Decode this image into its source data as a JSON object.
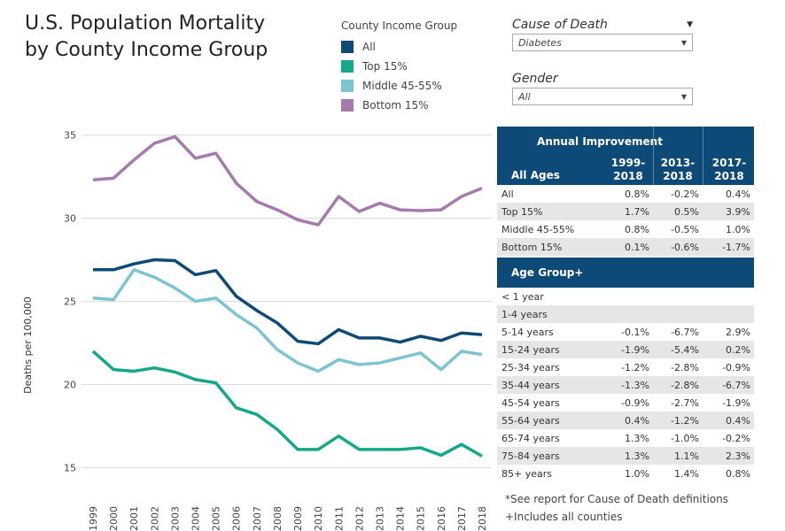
{
  "title_line1": "U.S. Population Mortality",
  "title_line2": "by County Income Group",
  "legend": {
    "title": "County Income Group",
    "items": [
      {
        "label": "All",
        "color": "#0d4a78"
      },
      {
        "label": "Top 15%",
        "color": "#14a88a"
      },
      {
        "label": "Middle 45-55%",
        "color": "#7cc4d2"
      },
      {
        "label": "Bottom 15%",
        "color": "#a57aad"
      }
    ]
  },
  "filters": {
    "cause_label": "Cause of Death",
    "cause_value": "Diabetes",
    "gender_label": "Gender",
    "gender_value": "All"
  },
  "table": {
    "header_title": "Annual Improvement",
    "all_ages_label": "All Ages",
    "col1": "1999-\n2018",
    "col2": "2013-\n2018",
    "col3": "2017-\n2018",
    "income_rows": [
      {
        "label": "All",
        "v1": "0.8%",
        "v2": "-0.2%",
        "v3": "0.4%"
      },
      {
        "label": "Top 15%",
        "v1": "1.7%",
        "v2": "0.5%",
        "v3": "3.9%"
      },
      {
        "label": "Middle 45-55%",
        "v1": "0.8%",
        "v2": "-0.5%",
        "v3": "1.0%"
      },
      {
        "label": "Bottom 15%",
        "v1": "0.1%",
        "v2": "-0.6%",
        "v3": "-1.7%"
      }
    ],
    "age_header": "Age Group+",
    "age_rows": [
      {
        "label": "< 1 year",
        "v1": "",
        "v2": "",
        "v3": ""
      },
      {
        "label": "1-4 years",
        "v1": "",
        "v2": "",
        "v3": ""
      },
      {
        "label": "5-14 years",
        "v1": "-0.1%",
        "v2": "-6.7%",
        "v3": "2.9%"
      },
      {
        "label": "15-24 years",
        "v1": "-1.9%",
        "v2": "-5.4%",
        "v3": "0.2%"
      },
      {
        "label": "25-34 years",
        "v1": "-1.2%",
        "v2": "-2.8%",
        "v3": "-0.9%"
      },
      {
        "label": "35-44 years",
        "v1": "-1.3%",
        "v2": "-2.8%",
        "v3": "-6.7%"
      },
      {
        "label": "45-54 years",
        "v1": "-0.9%",
        "v2": "-2.7%",
        "v3": "-1.9%"
      },
      {
        "label": "55-64 years",
        "v1": "0.4%",
        "v2": "-1.2%",
        "v3": "0.4%"
      },
      {
        "label": "65-74 years",
        "v1": "1.3%",
        "v2": "-1.0%",
        "v3": "-0.2%"
      },
      {
        "label": "75-84 years",
        "v1": "1.3%",
        "v2": "1.1%",
        "v3": "2.3%"
      },
      {
        "label": "85+ years",
        "v1": "1.0%",
        "v2": "1.4%",
        "v3": "0.8%"
      }
    ]
  },
  "notes": {
    "line1": "*See report for Cause of Death definitions",
    "line2": "+Includes all counties"
  },
  "chart_data": {
    "type": "line",
    "ylabel": "Deaths per 100,000",
    "xlabel": "",
    "ylim": [
      14.5,
      36
    ],
    "yticks": [
      15,
      20,
      25,
      30,
      35
    ],
    "grid": true,
    "x": [
      "1999",
      "2000",
      "2001",
      "2002",
      "2003",
      "2004",
      "2005",
      "2006",
      "2007",
      "2008",
      "2009",
      "2010",
      "2011",
      "2012",
      "2013",
      "2014",
      "2015",
      "2016",
      "2017",
      "2018"
    ],
    "series": [
      {
        "name": "Bottom 15%",
        "color": "#a57aad",
        "values": [
          32.3,
          32.4,
          33.5,
          34.5,
          34.9,
          33.6,
          33.9,
          32.1,
          31.0,
          30.5,
          29.9,
          29.6,
          31.3,
          30.4,
          30.9,
          30.5,
          30.45,
          30.5,
          31.3,
          31.8
        ]
      },
      {
        "name": "Middle 45-55%",
        "color": "#7cc4d2",
        "values": [
          25.2,
          25.1,
          26.9,
          26.45,
          25.8,
          25.0,
          25.2,
          24.2,
          23.4,
          22.1,
          21.3,
          20.8,
          21.5,
          21.2,
          21.3,
          21.6,
          21.9,
          20.9,
          22.0,
          21.8
        ]
      },
      {
        "name": "All",
        "color": "#0d4a78",
        "values": [
          26.9,
          26.9,
          27.25,
          27.5,
          27.45,
          26.6,
          26.85,
          25.3,
          24.45,
          23.7,
          22.6,
          22.45,
          23.3,
          22.8,
          22.8,
          22.55,
          22.9,
          22.65,
          23.1,
          23.0
        ]
      },
      {
        "name": "Top 15%",
        "color": "#14a88a",
        "values": [
          22.0,
          20.9,
          20.8,
          21.0,
          20.75,
          20.3,
          20.1,
          18.6,
          18.2,
          17.3,
          16.1,
          16.1,
          16.9,
          16.1,
          16.1,
          16.1,
          16.2,
          15.75,
          16.4,
          15.7
        ]
      }
    ]
  }
}
